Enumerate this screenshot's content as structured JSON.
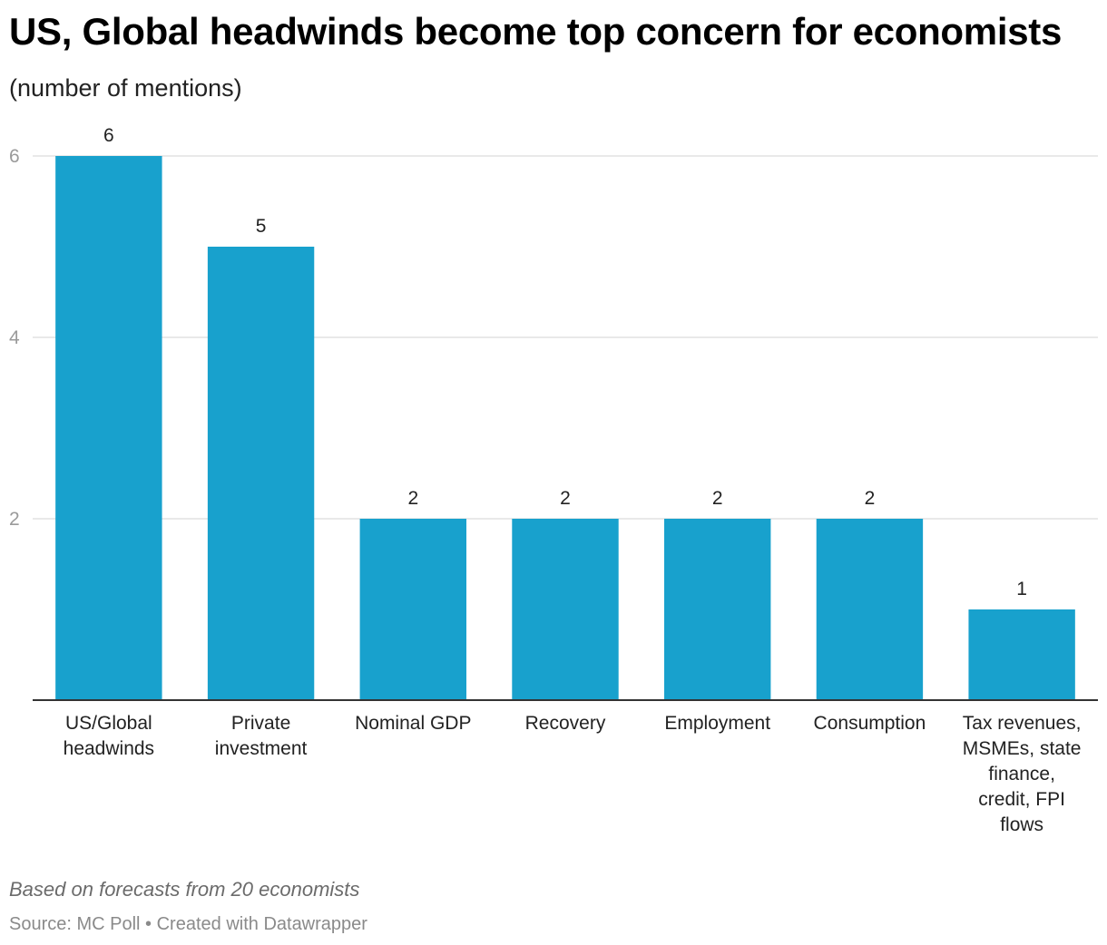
{
  "chart_data": {
    "type": "bar",
    "title": "US, Global headwinds become top concern for economists",
    "subtitle": "(number of mentions)",
    "categories": [
      [
        "US/Global",
        "headwinds"
      ],
      [
        "Private",
        "investment"
      ],
      [
        "Nominal GDP"
      ],
      [
        "Recovery"
      ],
      [
        "Employment"
      ],
      [
        "Consumption"
      ],
      [
        "Tax revenues,",
        "MSMEs, state",
        "finance,",
        "credit, FPI",
        "flows"
      ]
    ],
    "values": [
      6,
      5,
      2,
      2,
      2,
      2,
      1
    ],
    "ylim": [
      0,
      6
    ],
    "yticks": [
      2,
      4,
      6
    ],
    "grid": true,
    "bar_color": "#18a1cd",
    "notes": "Based on forecasts from 20 economists",
    "source": "Source: MC Poll • Created with Datawrapper"
  }
}
